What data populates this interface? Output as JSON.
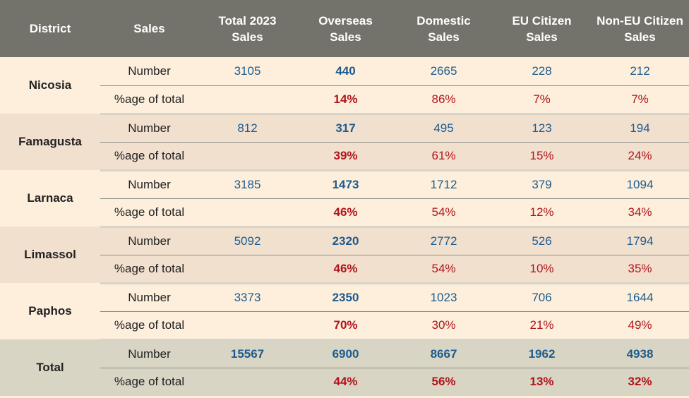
{
  "header": {
    "district": "District",
    "sales": "Sales",
    "total_2023": "Total 2023\nSales",
    "overseas": "Overseas\nSales",
    "domestic": "Domestic\nSales",
    "eu": "EU Citizen\nSales",
    "non_eu": "Non-EU Citizen\nSales"
  },
  "labels": {
    "number": "Number",
    "pct": "%age of total"
  },
  "districts": [
    {
      "name": "Nicosia",
      "number": {
        "total": "3105",
        "overseas": "440",
        "domestic": "2665",
        "eu": "228",
        "non_eu": "212"
      },
      "pct": {
        "overseas": "14%",
        "domestic": "86%",
        "eu": "7%",
        "non_eu": "7%"
      }
    },
    {
      "name": "Famagusta",
      "number": {
        "total": "812",
        "overseas": "317",
        "domestic": "495",
        "eu": "123",
        "non_eu": "194"
      },
      "pct": {
        "overseas": "39%",
        "domestic": "61%",
        "eu": "15%",
        "non_eu": "24%"
      }
    },
    {
      "name": "Larnaca",
      "number": {
        "total": "3185",
        "overseas": "1473",
        "domestic": "1712",
        "eu": "379",
        "non_eu": "1094"
      },
      "pct": {
        "overseas": "46%",
        "domestic": "54%",
        "eu": "12%",
        "non_eu": "34%"
      }
    },
    {
      "name": "Limassol",
      "number": {
        "total": "5092",
        "overseas": "2320",
        "domestic": "2772",
        "eu": "526",
        "non_eu": "1794"
      },
      "pct": {
        "overseas": "46%",
        "domestic": "54%",
        "eu": "10%",
        "non_eu": "35%"
      }
    },
    {
      "name": "Paphos",
      "number": {
        "total": "3373",
        "overseas": "2350",
        "domestic": "1023",
        "eu": "706",
        "non_eu": "1644"
      },
      "pct": {
        "overseas": "70%",
        "domestic": "30%",
        "eu": "21%",
        "non_eu": "49%"
      }
    }
  ],
  "total": {
    "name": "Total",
    "number": {
      "total": "15567",
      "overseas": "6900",
      "domestic": "8667",
      "eu": "1962",
      "non_eu": "4938"
    },
    "pct": {
      "overseas": "44%",
      "domestic": "56%",
      "eu": "13%",
      "non_eu": "32%"
    }
  },
  "colors": {
    "header_bg": "#74736b",
    "band_light": "#fdefdc",
    "band_dark": "#f2e0cf",
    "total_bg": "#d9d5c4",
    "number_blue": "#1d5b8e",
    "percent_red": "#b0141c"
  }
}
